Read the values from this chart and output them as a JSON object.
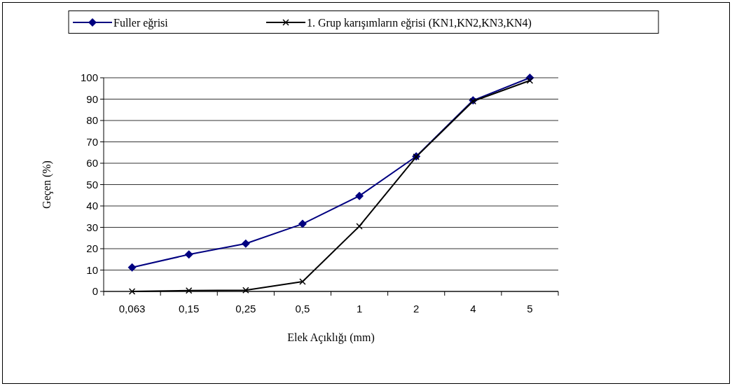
{
  "chart_data": {
    "type": "line",
    "xlabel": "Elek Açıklığı (mm)",
    "ylabel": "Geçen (%)",
    "categories": [
      "0,063",
      "0,15",
      "0,25",
      "0,5",
      "1",
      "2",
      "4",
      "5"
    ],
    "series": [
      {
        "name": "Fuller eğrisi",
        "color": "#000080",
        "marker": "diamond",
        "values": [
          11.2,
          17.3,
          22.4,
          31.6,
          44.7,
          63.2,
          89.4,
          100
        ]
      },
      {
        "name": "1. Grup karışımların eğrisi (KN1,KN2,KN3,KN4)",
        "color": "#000000",
        "marker": "cross",
        "values": [
          0,
          0.4,
          0.6,
          4.6,
          30.5,
          63,
          89,
          98.7
        ]
      }
    ],
    "ylim": [
      0,
      100
    ],
    "yticks": [
      0,
      10,
      20,
      30,
      40,
      50,
      60,
      70,
      80,
      90,
      100
    ],
    "grid": "y",
    "legend": "top"
  }
}
